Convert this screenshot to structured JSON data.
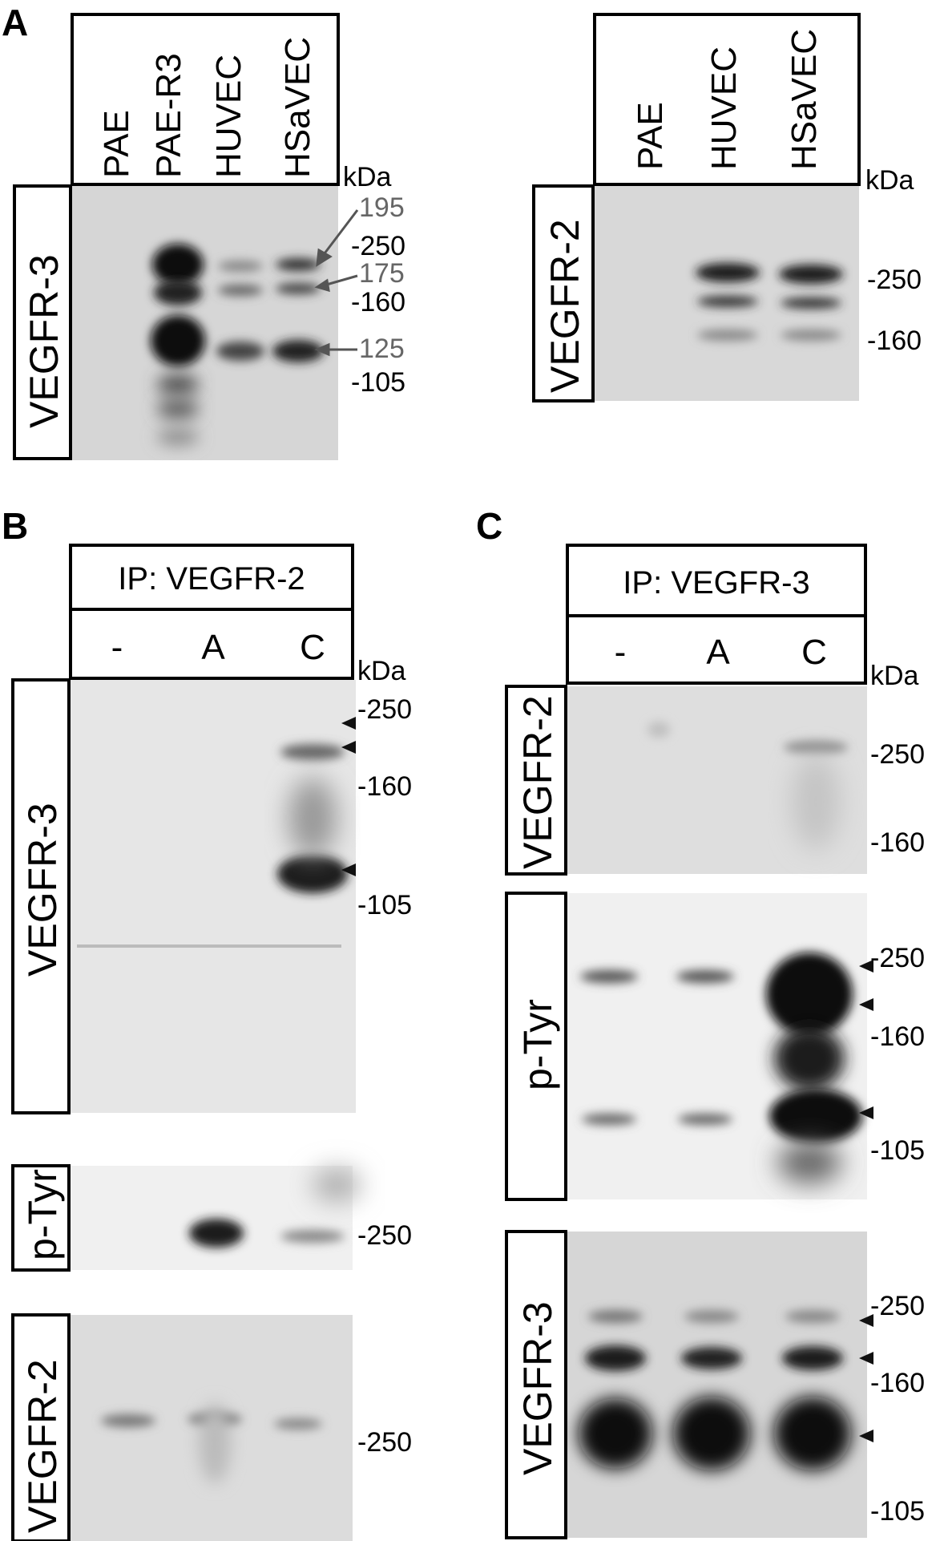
{
  "panel_a": {
    "letter": "A",
    "left_blot": {
      "lanes": [
        "PAE",
        "PAE-R3",
        "HUVEC",
        "HSaVEC"
      ],
      "unit": "kDa",
      "row_label": "VEGFR-3",
      "markers": [
        "-250",
        "-160",
        "-105"
      ],
      "band_callouts": [
        "195",
        "175",
        "125"
      ]
    },
    "right_blot": {
      "lanes": [
        "PAE",
        "HUVEC",
        "HSaVEC"
      ],
      "unit": "kDa",
      "row_label": "VEGFR-2",
      "markers": [
        "-250",
        "-160"
      ]
    }
  },
  "panel_b": {
    "letter": "B",
    "ip": "IP: VEGFR-2",
    "lanes": [
      "-",
      "A",
      "C"
    ],
    "unit": "kDa",
    "blots": [
      {
        "label": "VEGFR-3",
        "markers": [
          "-250",
          "-160",
          "-105"
        ]
      },
      {
        "label": "p-Tyr",
        "markers": [
          "-250"
        ]
      },
      {
        "label": "VEGFR-2",
        "markers": [
          "-250"
        ]
      }
    ]
  },
  "panel_c": {
    "letter": "C",
    "ip": "IP: VEGFR-3",
    "lanes": [
      "-",
      "A",
      "C"
    ],
    "unit": "kDa",
    "blots": [
      {
        "label": "VEGFR-2",
        "markers": [
          "-250",
          "-160"
        ]
      },
      {
        "label": "p-Tyr",
        "markers": [
          "-250",
          "-160",
          "-105"
        ]
      },
      {
        "label": "VEGFR-3",
        "markers": [
          "-250",
          "-160",
          "-105"
        ]
      }
    ]
  },
  "colors": {
    "blot_bg": "#d8d8d8",
    "band": "#1a1a1a",
    "callout": "#666666"
  }
}
